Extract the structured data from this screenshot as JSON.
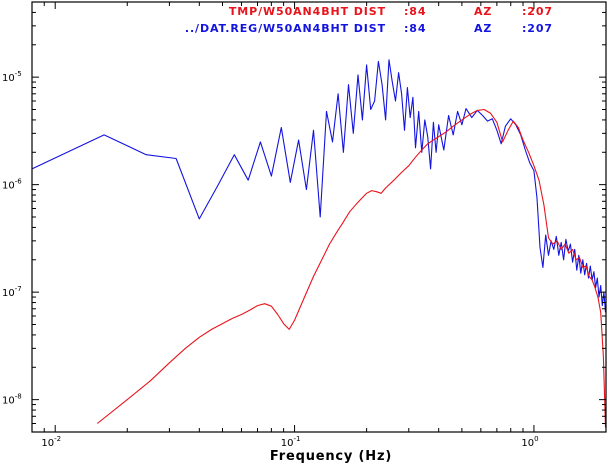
{
  "chart_data": {
    "type": "line",
    "xlabel": "Frequency (Hz)",
    "ylabel": "",
    "x_scale": "log",
    "y_scale": "log",
    "xlim": [
      0.008,
      2.0
    ],
    "ylim": [
      5e-09,
      5e-05
    ],
    "grid": false,
    "x_tick_labels": [
      {
        "value": 0.01,
        "base": "10",
        "exp": "-2"
      },
      {
        "value": 0.1,
        "base": "10",
        "exp": "-1"
      },
      {
        "value": 1,
        "base": "10",
        "exp": "0"
      }
    ],
    "y_tick_labels": [
      {
        "value": 1e-08,
        "base": "10",
        "exp": "-8"
      },
      {
        "value": 1e-07,
        "base": "10",
        "exp": "-7"
      },
      {
        "value": 1e-06,
        "base": "10",
        "exp": "-6"
      },
      {
        "value": 1e-05,
        "base": "10",
        "exp": "-5"
      }
    ],
    "legend": [
      {
        "text": "TMP/W50AN4BHT DIST",
        "dist": ":84",
        "az_label": "AZ",
        "az": ":207",
        "color": "#e8141c"
      },
      {
        "text": "../DAT.REG/W50AN4BHT DIST",
        "dist": ":84",
        "az_label": "AZ",
        "az": ":207",
        "color": "#1414e0"
      }
    ],
    "series": [
      {
        "color": "#1414e0",
        "x": [
          0.008,
          0.016,
          0.024,
          0.032,
          0.04,
          0.048,
          0.056,
          0.064,
          0.072,
          0.08,
          0.088,
          0.096,
          0.104,
          0.112,
          0.12,
          0.128,
          0.136,
          0.144,
          0.152,
          0.16,
          0.168,
          0.176,
          0.184,
          0.192,
          0.2,
          0.208,
          0.216,
          0.224,
          0.232,
          0.24,
          0.248,
          0.256,
          0.264,
          0.272,
          0.28,
          0.288,
          0.296,
          0.304,
          0.312,
          0.32,
          0.33,
          0.34,
          0.35,
          0.36,
          0.37,
          0.38,
          0.39,
          0.4,
          0.42,
          0.44,
          0.46,
          0.48,
          0.5,
          0.52,
          0.55,
          0.58,
          0.61,
          0.64,
          0.67,
          0.7,
          0.73,
          0.76,
          0.8,
          0.84,
          0.88,
          0.92,
          0.96,
          1.0,
          1.03,
          1.06,
          1.09,
          1.12,
          1.15,
          1.18,
          1.21,
          1.24,
          1.27,
          1.3,
          1.33,
          1.36,
          1.39,
          1.42,
          1.45,
          1.48,
          1.51,
          1.54,
          1.57,
          1.6,
          1.63,
          1.66,
          1.69,
          1.72,
          1.75,
          1.78,
          1.81,
          1.84,
          1.87,
          1.9,
          1.93,
          1.96,
          1.99
        ],
        "y": [
          1.4e-06,
          2.9e-06,
          1.9e-06,
          1.75e-06,
          4.8e-07,
          1e-06,
          1.9e-06,
          1.1e-06,
          2.5e-06,
          1.2e-06,
          3.4e-06,
          1.05e-06,
          2.6e-06,
          9e-07,
          3.2e-06,
          5e-07,
          4.8e-06,
          2.5e-06,
          7e-06,
          2e-06,
          8.5e-06,
          3e-06,
          1.05e-05,
          4e-06,
          1.3e-05,
          5e-06,
          6e-06,
          1.4e-05,
          8.5e-06,
          4e-06,
          1.45e-05,
          9e-06,
          6e-06,
          1.1e-05,
          7e-06,
          3.2e-06,
          8e-06,
          4.2e-06,
          6.5e-06,
          2.2e-06,
          4.8e-06,
          2e-06,
          4e-06,
          2.8e-06,
          1.4e-06,
          3.8e-06,
          2e-06,
          3.6e-06,
          2.1e-06,
          4.4e-06,
          2.9e-06,
          4.8e-06,
          3.6e-06,
          5.1e-06,
          4.2e-06,
          4.9e-06,
          4.4e-06,
          3.9e-06,
          4.1e-06,
          3.2e-06,
          2.4e-06,
          3.5e-06,
          4.1e-06,
          3.6e-06,
          2.9e-06,
          2.1e-06,
          1.6e-06,
          1.35e-06,
          7.5e-07,
          2.6e-07,
          1.7e-07,
          3.4e-07,
          2.2e-07,
          3e-07,
          2.5e-07,
          3.3e-07,
          2.2e-07,
          2.9e-07,
          2e-07,
          3.1e-07,
          2.4e-07,
          2.8e-07,
          1.9e-07,
          2.5e-07,
          1.6e-07,
          2.2e-07,
          1.5e-07,
          2e-07,
          1.45e-07,
          1.85e-07,
          1.35e-07,
          1.75e-07,
          1.3e-07,
          1.55e-07,
          1.1e-07,
          1.35e-07,
          9e-08,
          1.15e-07,
          7.5e-08,
          1e-07,
          6.5e-08
        ]
      },
      {
        "color": "#e8141c",
        "x": [
          0.015,
          0.02,
          0.025,
          0.03,
          0.035,
          0.04,
          0.045,
          0.05,
          0.055,
          0.06,
          0.065,
          0.07,
          0.075,
          0.08,
          0.085,
          0.09,
          0.095,
          0.1,
          0.11,
          0.12,
          0.13,
          0.14,
          0.15,
          0.16,
          0.17,
          0.18,
          0.19,
          0.2,
          0.21,
          0.22,
          0.23,
          0.24,
          0.26,
          0.28,
          0.3,
          0.32,
          0.34,
          0.36,
          0.38,
          0.4,
          0.43,
          0.46,
          0.5,
          0.54,
          0.58,
          0.62,
          0.66,
          0.7,
          0.74,
          0.78,
          0.82,
          0.86,
          0.9,
          0.95,
          1.0,
          1.05,
          1.1,
          1.15,
          1.2,
          1.25,
          1.3,
          1.35,
          1.4,
          1.45,
          1.5,
          1.55,
          1.6,
          1.65,
          1.7,
          1.75,
          1.8,
          1.85,
          1.9,
          1.95,
          1.99
        ],
        "y": [
          6e-09,
          1e-08,
          1.5e-08,
          2.2e-08,
          3e-08,
          3.8e-08,
          4.5e-08,
          5.1e-08,
          5.7e-08,
          6.2e-08,
          6.8e-08,
          7.5e-08,
          7.8e-08,
          7.4e-08,
          6.2e-08,
          5.1e-08,
          4.5e-08,
          5.5e-08,
          9e-08,
          1.4e-07,
          2e-07,
          2.8e-07,
          3.6e-07,
          4.5e-07,
          5.6e-07,
          6.5e-07,
          7.4e-07,
          8.3e-07,
          8.8e-07,
          8.6e-07,
          8.3e-07,
          9.3e-07,
          1.1e-06,
          1.3e-06,
          1.5e-06,
          1.8e-06,
          2.1e-06,
          2.4e-06,
          2.6e-06,
          2.8e-06,
          3.1e-06,
          3.5e-06,
          4e-06,
          4.5e-06,
          4.9e-06,
          5e-06,
          4.6e-06,
          3.8e-06,
          2.5e-06,
          3.2e-06,
          3.9e-06,
          3.4e-06,
          2.6e-06,
          2e-06,
          1.5e-06,
          1.1e-06,
          6.5e-07,
          3.2e-07,
          2.8e-07,
          3e-07,
          2.5e-07,
          2.8e-07,
          2.3e-07,
          2.5e-07,
          2e-07,
          2.1e-07,
          1.7e-07,
          1.75e-07,
          1.4e-07,
          1.3e-07,
          1.1e-07,
          9e-08,
          6.5e-08,
          2.5e-08,
          5.5e-09
        ]
      }
    ]
  }
}
